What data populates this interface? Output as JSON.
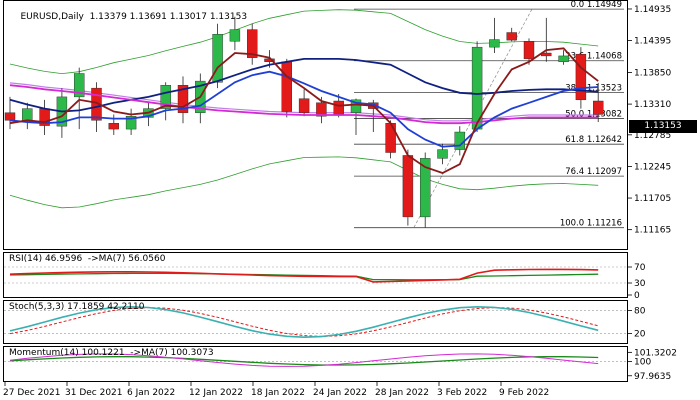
{
  "main": {
    "title": "EURUSD,Daily",
    "ohlc": "1.13379 1.13691 1.13017 1.13153",
    "current_price": "1.13153",
    "price_ticks": [
      "1.14935",
      "1.14395",
      "1.13850",
      "1.13310",
      "1.12785",
      "1.12245",
      "1.11705",
      "1.11165"
    ],
    "fib_levels": [
      {
        "label": "0.0 1.14949",
        "value": 1.14949
      },
      {
        "label": "23.6 1.14068",
        "value": 1.14068
      },
      {
        "label": "38.2 1.13523",
        "value": 1.13523
      },
      {
        "label": "50.0 1.13082",
        "value": 1.13082
      },
      {
        "label": "61.8 1.12642",
        "value": 1.12642
      },
      {
        "label": "76.4 1.12097",
        "value": 1.12097
      },
      {
        "label": "100.0 1.11216",
        "value": 1.11216
      }
    ]
  },
  "rsi": {
    "title": "RSI(14) 46.9596  ->MA(7) 56.0560",
    "ticks": [
      "70",
      "30",
      "0"
    ]
  },
  "stoch": {
    "title": "Stoch(5,3,3) 17.1859 42.2110",
    "ticks": [
      "80",
      "20"
    ]
  },
  "momentum": {
    "title": "Momentum(14) 100.1221  ->MA(7) 100.3073",
    "ticks": [
      "101.3202",
      "100",
      "97.9635"
    ]
  },
  "dates": [
    "27 Dec 2021",
    "31 Dec 2021",
    "6 Jan 2022",
    "12 Jan 2022",
    "18 Jan 2022",
    "24 Jan 2022",
    "28 Jan 2022",
    "3 Feb 2022",
    "9 Feb 2022"
  ],
  "colors": {
    "bull": "#2db84a",
    "bear": "#e31a1a",
    "ma_blue": "#1f3fd6",
    "ma_navy": "#102080",
    "ma_magenta": "#d42ad4",
    "ma_violet": "#c080e8",
    "maroon": "#8b1a1a",
    "green": "#1a8a1a",
    "teal": "#3ab0b0"
  },
  "chart_data": {
    "type": "candlestick",
    "symbol": "EURUSD",
    "timeframe": "Daily",
    "y_range": [
      1.1092,
      1.1502
    ],
    "candles": [
      {
        "o": 1.1318,
        "h": 1.1345,
        "l": 1.129,
        "c": 1.1305
      },
      {
        "o": 1.1305,
        "h": 1.1335,
        "l": 1.129,
        "c": 1.1325
      },
      {
        "o": 1.1325,
        "h": 1.134,
        "l": 1.128,
        "c": 1.1296
      },
      {
        "o": 1.1295,
        "h": 1.136,
        "l": 1.1275,
        "c": 1.1345
      },
      {
        "o": 1.1345,
        "h": 1.1395,
        "l": 1.129,
        "c": 1.1385
      },
      {
        "o": 1.136,
        "h": 1.137,
        "l": 1.1285,
        "c": 1.1305
      },
      {
        "o": 1.13,
        "h": 1.1315,
        "l": 1.128,
        "c": 1.129
      },
      {
        "o": 1.129,
        "h": 1.1325,
        "l": 1.128,
        "c": 1.1312
      },
      {
        "o": 1.131,
        "h": 1.1335,
        "l": 1.1295,
        "c": 1.1325
      },
      {
        "o": 1.1325,
        "h": 1.137,
        "l": 1.1305,
        "c": 1.1365
      },
      {
        "o": 1.1365,
        "h": 1.138,
        "l": 1.13,
        "c": 1.1318
      },
      {
        "o": 1.1318,
        "h": 1.1385,
        "l": 1.13,
        "c": 1.1372
      },
      {
        "o": 1.137,
        "h": 1.147,
        "l": 1.136,
        "c": 1.1452
      },
      {
        "o": 1.144,
        "h": 1.1482,
        "l": 1.1425,
        "c": 1.146
      },
      {
        "o": 1.146,
        "h": 1.147,
        "l": 1.14,
        "c": 1.1412
      },
      {
        "o": 1.141,
        "h": 1.1425,
        "l": 1.1395,
        "c": 1.1405
      },
      {
        "o": 1.1405,
        "h": 1.141,
        "l": 1.131,
        "c": 1.132
      },
      {
        "o": 1.1342,
        "h": 1.1358,
        "l": 1.1312,
        "c": 1.1318
      },
      {
        "o": 1.1335,
        "h": 1.1345,
        "l": 1.13,
        "c": 1.1312
      },
      {
        "o": 1.1338,
        "h": 1.135,
        "l": 1.131,
        "c": 1.1315
      },
      {
        "o": 1.1318,
        "h": 1.1342,
        "l": 1.128,
        "c": 1.134
      },
      {
        "o": 1.1335,
        "h": 1.134,
        "l": 1.1285,
        "c": 1.1325
      },
      {
        "o": 1.13,
        "h": 1.1305,
        "l": 1.124,
        "c": 1.125
      },
      {
        "o": 1.1245,
        "h": 1.1255,
        "l": 1.1125,
        "c": 1.114
      },
      {
        "o": 1.114,
        "h": 1.125,
        "l": 1.1122,
        "c": 1.124
      },
      {
        "o": 1.124,
        "h": 1.1265,
        "l": 1.123,
        "c": 1.1255
      },
      {
        "o": 1.1255,
        "h": 1.1295,
        "l": 1.1245,
        "c": 1.1285
      },
      {
        "o": 1.129,
        "h": 1.144,
        "l": 1.1285,
        "c": 1.143
      },
      {
        "o": 1.143,
        "h": 1.148,
        "l": 1.142,
        "c": 1.1443
      },
      {
        "o": 1.1455,
        "h": 1.1463,
        "l": 1.144,
        "c": 1.1442
      },
      {
        "o": 1.144,
        "h": 1.1445,
        "l": 1.14,
        "c": 1.141
      },
      {
        "o": 1.142,
        "h": 1.148,
        "l": 1.1405,
        "c": 1.1415
      },
      {
        "o": 1.1405,
        "h": 1.1425,
        "l": 1.14,
        "c": 1.1415
      },
      {
        "o": 1.1418,
        "h": 1.143,
        "l": 1.1325,
        "c": 1.134
      },
      {
        "o": 1.1338,
        "h": 1.1369,
        "l": 1.1302,
        "c": 1.1315
      }
    ],
    "fibonacci": [
      {
        "level": 0.0,
        "price": 1.14949
      },
      {
        "level": 23.6,
        "price": 1.14068
      },
      {
        "level": 38.2,
        "price": 1.13523
      },
      {
        "level": 50.0,
        "price": 1.13082
      },
      {
        "level": 61.8,
        "price": 1.12642
      },
      {
        "level": 76.4,
        "price": 1.12097
      },
      {
        "level": 100.0,
        "price": 1.11216
      }
    ],
    "overlays": [
      {
        "color": "#102080",
        "values": [
          1.134,
          1.1332,
          1.1325,
          1.132,
          1.1322,
          1.1328,
          1.1335,
          1.134,
          1.1345,
          1.1352,
          1.1358,
          1.1364,
          1.1372,
          1.1382,
          1.1392,
          1.14,
          1.1405,
          1.141,
          1.141,
          1.141,
          1.1408,
          1.1404,
          1.14,
          1.1385,
          1.137,
          1.136,
          1.1352,
          1.135,
          1.1352,
          1.1355,
          1.1357,
          1.1358,
          1.1358,
          1.1356,
          1.1354
        ]
      },
      {
        "color": "#d42ad4",
        "values": [
          1.1365,
          1.1362,
          1.1358,
          1.1355,
          1.1352,
          1.1348,
          1.1344,
          1.134,
          1.1336,
          1.1332,
          1.1328,
          1.1325,
          1.1322,
          1.132,
          1.1318,
          1.1316,
          1.1315,
          1.1314,
          1.1314,
          1.1314,
          1.1314,
          1.1312,
          1.131,
          1.1306,
          1.1302,
          1.13,
          1.13,
          1.1302,
          1.1305,
          1.1308,
          1.131,
          1.131,
          1.131,
          1.131,
          1.131
        ]
      },
      {
        "color": "#1f3fd6",
        "values": [
          1.1305,
          1.1302,
          1.13,
          1.1302,
          1.131,
          1.131,
          1.1308,
          1.1308,
          1.1312,
          1.1322,
          1.1325,
          1.133,
          1.135,
          1.137,
          1.1382,
          1.1388,
          1.138,
          1.1368,
          1.1355,
          1.1345,
          1.1335,
          1.1332,
          1.1318,
          1.129,
          1.1272,
          1.126,
          1.1262,
          1.129,
          1.131,
          1.1325,
          1.1335,
          1.1345,
          1.1355,
          1.136,
          1.1362
        ]
      },
      {
        "color": "#8b1a1a",
        "values": [
          1.13,
          1.1305,
          1.1302,
          1.1312,
          1.134,
          1.1335,
          1.132,
          1.1315,
          1.1318,
          1.133,
          1.1328,
          1.1345,
          1.1395,
          1.142,
          1.1418,
          1.1412,
          1.138,
          1.136,
          1.1338,
          1.133,
          1.1332,
          1.133,
          1.13,
          1.1245,
          1.1225,
          1.1215,
          1.123,
          1.13,
          1.135,
          1.1392,
          1.1405,
          1.1425,
          1.1428,
          1.1395,
          1.1372
        ]
      }
    ]
  }
}
